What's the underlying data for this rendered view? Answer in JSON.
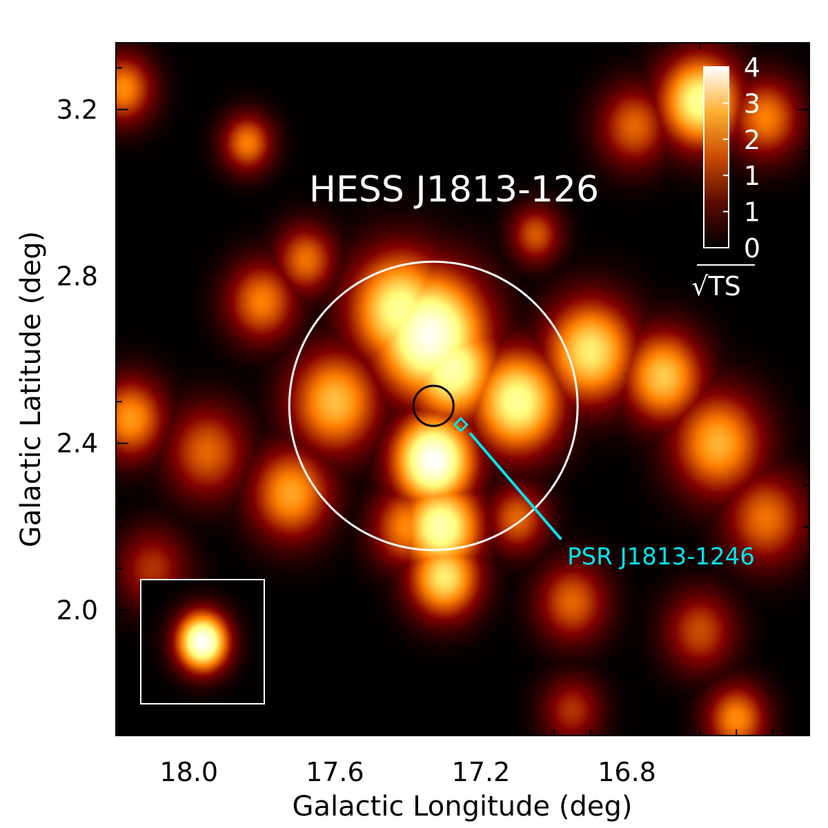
{
  "chart_data": {
    "type": "heatmap",
    "title": "HESS J1813-126",
    "xlabel": "Galactic Longitude (deg)",
    "ylabel": "Galactic Latitude (deg)",
    "xlim": [
      18.2,
      16.3
    ],
    "ylim": [
      1.7,
      3.36
    ],
    "x_ticks": [
      18.0,
      17.6,
      17.2,
      16.8
    ],
    "x_tick_labels": [
      "18.0",
      "17.6",
      "17.2",
      "16.8"
    ],
    "y_ticks": [
      2.0,
      2.4,
      2.8,
      3.2
    ],
    "y_tick_labels": [
      "2.0",
      "2.4",
      "2.8",
      "3.2"
    ],
    "colorbar": {
      "label_prefix": "√",
      "label": "TS",
      "tick_labels": [
        "4",
        "3",
        "2",
        "1",
        "1",
        "0"
      ],
      "range": [
        0,
        4
      ],
      "colormap": "afmhot"
    },
    "emission_blobs": [
      {
        "l": 17.34,
        "b": 2.66,
        "peak": 3.9,
        "sigma": 0.11
      },
      {
        "l": 17.42,
        "b": 2.72,
        "peak": 3.2,
        "sigma": 0.1
      },
      {
        "l": 17.28,
        "b": 2.58,
        "peak": 3.4,
        "sigma": 0.09
      },
      {
        "l": 17.33,
        "b": 2.36,
        "peak": 4.0,
        "sigma": 0.08
      },
      {
        "l": 17.31,
        "b": 2.2,
        "peak": 3.4,
        "sigma": 0.08
      },
      {
        "l": 17.3,
        "b": 2.08,
        "peak": 2.9,
        "sigma": 0.07
      },
      {
        "l": 17.1,
        "b": 2.5,
        "peak": 3.2,
        "sigma": 0.09
      },
      {
        "l": 16.9,
        "b": 2.62,
        "peak": 2.9,
        "sigma": 0.09
      },
      {
        "l": 16.7,
        "b": 2.56,
        "peak": 2.6,
        "sigma": 0.08
      },
      {
        "l": 16.55,
        "b": 2.4,
        "peak": 2.4,
        "sigma": 0.09
      },
      {
        "l": 16.42,
        "b": 2.22,
        "peak": 1.9,
        "sigma": 0.08
      },
      {
        "l": 17.6,
        "b": 2.5,
        "peak": 2.5,
        "sigma": 0.09
      },
      {
        "l": 17.72,
        "b": 2.28,
        "peak": 2.3,
        "sigma": 0.08
      },
      {
        "l": 17.8,
        "b": 2.74,
        "peak": 2.0,
        "sigma": 0.07
      },
      {
        "l": 17.68,
        "b": 2.84,
        "peak": 1.9,
        "sigma": 0.06
      },
      {
        "l": 17.95,
        "b": 2.38,
        "peak": 1.8,
        "sigma": 0.08
      },
      {
        "l": 18.16,
        "b": 2.46,
        "peak": 2.2,
        "sigma": 0.07
      },
      {
        "l": 17.4,
        "b": 2.2,
        "peak": 2.1,
        "sigma": 0.07
      },
      {
        "l": 16.6,
        "b": 3.22,
        "peak": 3.2,
        "sigma": 0.08
      },
      {
        "l": 16.42,
        "b": 3.18,
        "peak": 2.0,
        "sigma": 0.07
      },
      {
        "l": 16.78,
        "b": 3.16,
        "peak": 1.8,
        "sigma": 0.07
      },
      {
        "l": 17.84,
        "b": 3.12,
        "peak": 2.0,
        "sigma": 0.05
      },
      {
        "l": 18.18,
        "b": 3.25,
        "peak": 2.1,
        "sigma": 0.06
      },
      {
        "l": 17.05,
        "b": 2.9,
        "peak": 1.7,
        "sigma": 0.05
      },
      {
        "l": 16.95,
        "b": 2.02,
        "peak": 1.8,
        "sigma": 0.07
      },
      {
        "l": 16.6,
        "b": 1.95,
        "peak": 1.6,
        "sigma": 0.07
      },
      {
        "l": 16.5,
        "b": 1.74,
        "peak": 2.1,
        "sigma": 0.06
      },
      {
        "l": 16.95,
        "b": 1.76,
        "peak": 1.4,
        "sigma": 0.06
      },
      {
        "l": 18.1,
        "b": 2.1,
        "peak": 1.4,
        "sigma": 0.07
      },
      {
        "l": 17.1,
        "b": 2.22,
        "peak": 1.8,
        "sigma": 0.06
      }
    ],
    "markers": [
      {
        "type": "circle",
        "color": "#ffffff",
        "l": 17.33,
        "b": 2.49,
        "radius_deg": 0.395
      },
      {
        "type": "circle",
        "color": "#000000",
        "l": 17.33,
        "b": 2.49,
        "radius_deg": 0.055
      },
      {
        "type": "diamond",
        "color": "#00e5ee",
        "l": 17.255,
        "b": 2.445
      }
    ],
    "annotation": {
      "text": "PSR J1813-1246",
      "color": "#00e5ee",
      "line_from": {
        "l": 17.23,
        "b": 2.425
      },
      "line_to": {
        "l": 16.98,
        "b": 2.17
      }
    },
    "psf_inset": {
      "l": 17.93,
      "b": 1.88,
      "peak": 4.0,
      "sigma": 0.05
    }
  }
}
